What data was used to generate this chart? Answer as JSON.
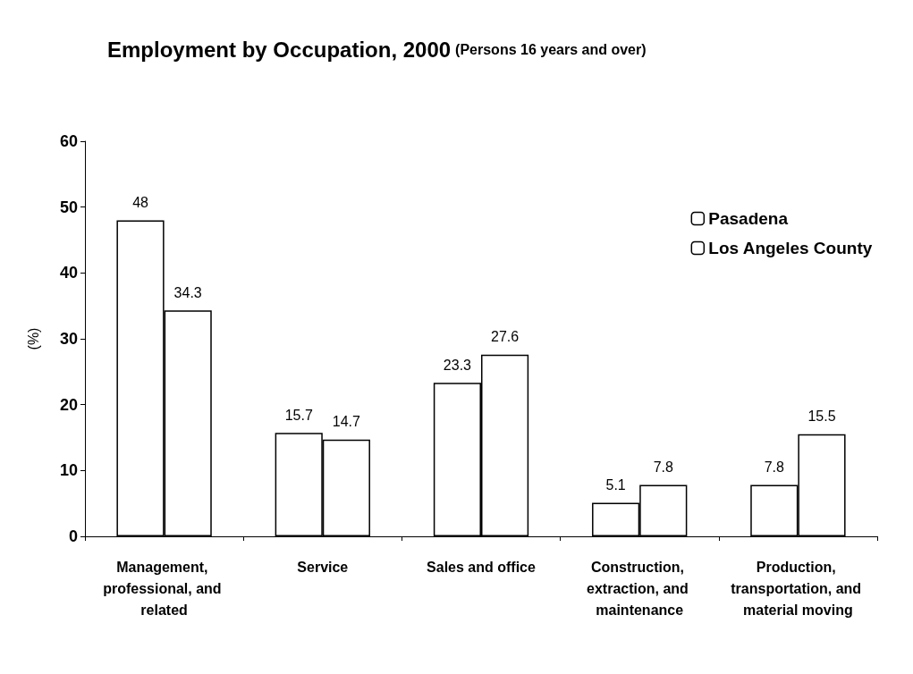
{
  "chart_data": {
    "type": "bar",
    "title": "Employment by Occupation, 2000",
    "subtitle": "(Persons 16 years and over)",
    "ylabel": "(%)",
    "categories": [
      "Management, professional, and related",
      "Service",
      "Sales and office",
      "Construction, extraction, and maintenance",
      "Production, transportation, and material moving"
    ],
    "series": [
      {
        "name": "Pasadena",
        "color": "#ffffff",
        "values": [
          48,
          15.7,
          23.3,
          5.1,
          7.8
        ]
      },
      {
        "name": "Los Angeles County",
        "color": "#ffffff",
        "values": [
          34.3,
          14.7,
          27.6,
          7.8,
          15.5
        ]
      }
    ],
    "ylim": [
      0,
      60
    ],
    "yticks": [
      0,
      10,
      20,
      30,
      40,
      50,
      60
    ],
    "grid": false,
    "legend": "top right",
    "data_labels": true
  }
}
